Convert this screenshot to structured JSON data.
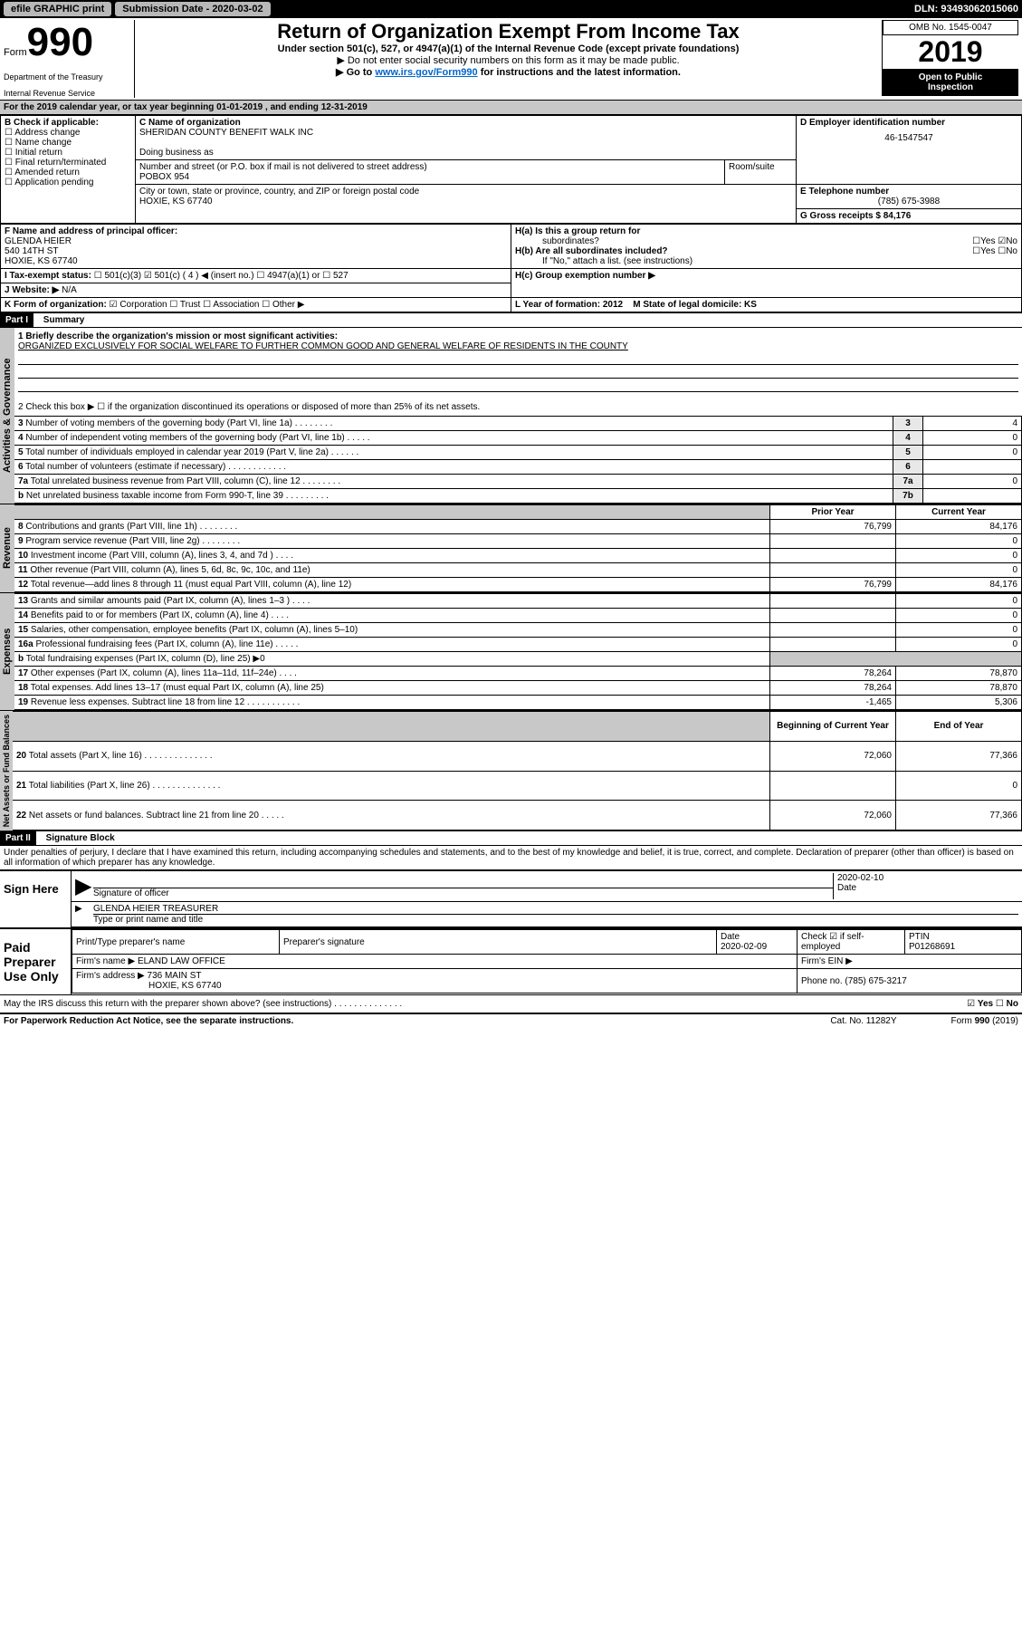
{
  "top": {
    "efile": "efile GRAPHIC print",
    "submission": "Submission Date - 2020-03-02",
    "dln": "DLN: 93493062015060"
  },
  "header": {
    "form": "Form",
    "num": "990",
    "dept1": "Department of the Treasury",
    "dept2": "Internal Revenue Service",
    "title": "Return of Organization Exempt From Income Tax",
    "sub": "Under section 501(c), 527, or 4947(a)(1) of the Internal Revenue Code (except private foundations)",
    "note1": "▶ Do not enter social security numbers on this form as it may be made public.",
    "note2a": "▶ Go to ",
    "note2link": "www.irs.gov/Form990",
    "note2b": " for instructions and the latest information.",
    "omb": "OMB No. 1545-0047",
    "year": "2019",
    "open1": "Open to Public",
    "open2": "Inspection"
  },
  "sectionA": {
    "line_a": "For the 2019 calendar year, or tax year beginning 01-01-2019    , and ending 12-31-2019",
    "b_label": "B Check if applicable:",
    "b_opts": [
      "Address change",
      "Name change",
      "Initial return",
      "Final return/terminated",
      "Amended return",
      "Application pending"
    ],
    "c_label": "C Name of organization",
    "c_name": "SHERIDAN COUNTY BENEFIT WALK INC",
    "dba": "Doing business as",
    "addr_label": "Number and street (or P.O. box if mail is not delivered to street address)",
    "room": "Room/suite",
    "addr": "POBOX 954",
    "city_label": "City or town, state or province, country, and ZIP or foreign postal code",
    "city": "HOXIE, KS  67740",
    "d_label": "D Employer identification number",
    "d_val": "46-1547547",
    "e_label": "E Telephone number",
    "e_val": "(785) 675-3988",
    "g_label": "G Gross receipts $ 84,176",
    "f_label": "F Name and address of principal officer:",
    "f_name": "GLENDA HEIER",
    "f_addr1": "540 14TH ST",
    "f_addr2": "HOXIE, KS  67740",
    "ha": "H(a)  Is this a group return for",
    "ha2": "subordinates?",
    "hb": "H(b) Are all subordinates included?",
    "hb_note": "If \"No,\" attach a list. (see instructions)",
    "hc": "H(c) Group exemption number ▶",
    "i_label": "I  Tax-exempt status:",
    "i_501c3": "501(c)(3)",
    "i_501c": "501(c) ( 4 ) ◀ (insert no.)",
    "i_4947": "4947(a)(1) or",
    "i_527": "527",
    "j_label": "J  Website: ▶",
    "j_val": "N/A",
    "k_label": "K Form of organization:",
    "k_opts": [
      "Corporation",
      "Trust",
      "Association",
      "Other ▶"
    ],
    "l_label": "L Year of formation: 2012",
    "m_label": "M State of legal domicile: KS",
    "yes": "Yes",
    "no": "No"
  },
  "part1": {
    "header": "Part I",
    "title": "Summary",
    "line1": "1 Briefly describe the organization's mission or most significant activities:",
    "mission": "ORGANIZED EXCLUSIVELY FOR SOCIAL WELFARE TO FURTHER COMMON GOOD AND GENERAL WELFARE OF RESIDENTS IN THE COUNTY",
    "line2": "2  Check this box ▶ ☐  if the organization discontinued its operations or disposed of more than 25% of its net assets.",
    "lines_gov": [
      {
        "n": "3",
        "t": "Number of voting members of the governing body (Part VI, line 1a)   .    .    .    .    .    .    .    .",
        "box": "3",
        "v": "4"
      },
      {
        "n": "4",
        "t": "Number of independent voting members of the governing body (Part VI, line 1b)   .    .    .    .    .",
        "box": "4",
        "v": "0"
      },
      {
        "n": "5",
        "t": "Total number of individuals employed in calendar year 2019 (Part V, line 2a)   .    .    .    .    .    .",
        "box": "5",
        "v": "0"
      },
      {
        "n": "6",
        "t": "Total number of volunteers (estimate if necessary)   .    .    .    .    .    .    .    .    .    .    .    .",
        "box": "6",
        "v": ""
      },
      {
        "n": "7a",
        "t": "Total unrelated business revenue from Part VIII, column (C), line 12   .    .    .    .    .    .    .    .",
        "box": "7a",
        "v": "0"
      },
      {
        "n": "b",
        "t": "Net unrelated business taxable income from Form 990-T, line 39   .    .    .    .    .    .    .    .    .",
        "box": "7b",
        "v": ""
      }
    ],
    "col_prior": "Prior Year",
    "col_current": "Current Year",
    "lines_rev": [
      {
        "n": "8",
        "t": "Contributions and grants (Part VIII, line 1h)   .    .    .    .    .    .    .    .",
        "p": "76,799",
        "c": "84,176"
      },
      {
        "n": "9",
        "t": "Program service revenue (Part VIII, line 2g)   .    .    .    .    .    .    .    .",
        "p": "",
        "c": "0"
      },
      {
        "n": "10",
        "t": "Investment income (Part VIII, column (A), lines 3, 4, and 7d )   .    .    .    .",
        "p": "",
        "c": "0"
      },
      {
        "n": "11",
        "t": "Other revenue (Part VIII, column (A), lines 5, 6d, 8c, 9c, 10c, and 11e)",
        "p": "",
        "c": "0"
      },
      {
        "n": "12",
        "t": "Total revenue—add lines 8 through 11 (must equal Part VIII, column (A), line 12)",
        "p": "76,799",
        "c": "84,176"
      }
    ],
    "lines_exp": [
      {
        "n": "13",
        "t": "Grants and similar amounts paid (Part IX, column (A), lines 1–3 )   .    .    .    .",
        "p": "",
        "c": "0"
      },
      {
        "n": "14",
        "t": "Benefits paid to or for members (Part IX, column (A), line 4)   .    .    .    .",
        "p": "",
        "c": "0"
      },
      {
        "n": "15",
        "t": "Salaries, other compensation, employee benefits (Part IX, column (A), lines 5–10)",
        "p": "",
        "c": "0"
      },
      {
        "n": "16a",
        "t": "Professional fundraising fees (Part IX, column (A), line 11e)   .    .    .    .    .",
        "p": "",
        "c": "0"
      },
      {
        "n": "b",
        "t": "Total fundraising expenses (Part IX, column (D), line 25) ▶0",
        "p": null,
        "c": null
      },
      {
        "n": "17",
        "t": "Other expenses (Part IX, column (A), lines 11a–11d, 11f–24e)   .    .    .    .",
        "p": "78,264",
        "c": "78,870"
      },
      {
        "n": "18",
        "t": "Total expenses. Add lines 13–17 (must equal Part IX, column (A), line 25)",
        "p": "78,264",
        "c": "78,870"
      },
      {
        "n": "19",
        "t": "Revenue less expenses. Subtract line 18 from line 12   .    .    .    .    .    .    .    .    .    .    .",
        "p": "-1,465",
        "c": "5,306"
      }
    ],
    "col_begin": "Beginning of Current Year",
    "col_end": "End of Year",
    "lines_net": [
      {
        "n": "20",
        "t": "Total assets (Part X, line 16)   .    .    .    .    .    .    .    .    .    .    .    .    .    .",
        "p": "72,060",
        "c": "77,366"
      },
      {
        "n": "21",
        "t": "Total liabilities (Part X, line 26)   .    .    .    .    .    .    .    .    .    .    .    .    .    .",
        "p": "",
        "c": "0"
      },
      {
        "n": "22",
        "t": "Net assets or fund balances. Subtract line 21 from line 20   .    .    .    .    .",
        "p": "72,060",
        "c": "77,366"
      }
    ],
    "vlabels": {
      "gov": "Activities & Governance",
      "rev": "Revenue",
      "exp": "Expenses",
      "net": "Net Assets or Fund Balances"
    }
  },
  "part2": {
    "header": "Part II",
    "title": "Signature Block",
    "perjury": "Under penalties of perjury, I declare that I have examined this return, including accompanying schedules and statements, and to the best of my knowledge and belief, it is true, correct, and complete. Declaration of preparer (other than officer) is based on all information of which preparer has any knowledge.",
    "sign": "Sign Here",
    "sig_officer": "Signature of officer",
    "date": "Date",
    "sig_date": "2020-02-10",
    "officer_name": "GLENDA HEIER TREASURER",
    "type_name": "Type or print name and title",
    "paid": "Paid Preparer Use Only",
    "prep_name_label": "Print/Type preparer's name",
    "prep_sig_label": "Preparer's signature",
    "prep_date_label": "Date",
    "prep_date": "2020-02-09",
    "check_self": "Check ☑ if self-employed",
    "ptin_label": "PTIN",
    "ptin": "P01268691",
    "firm_name_label": "Firm's name    ▶",
    "firm_name": "ELAND LAW OFFICE",
    "firm_ein_label": "Firm's EIN ▶",
    "firm_addr_label": "Firm's address ▶",
    "firm_addr1": "736 MAIN ST",
    "firm_addr2": "HOXIE, KS  67740",
    "phone_label": "Phone no. (785) 675-3217",
    "discuss": "May the IRS discuss this return with the preparer shown above? (see instructions)   .    .    .    .    .    .    .    .    .    .    .    .    .    .",
    "paperwork": "For Paperwork Reduction Act Notice, see the separate instructions.",
    "catno": "Cat. No. 11282Y",
    "formno": "Form 990 (2019)"
  }
}
